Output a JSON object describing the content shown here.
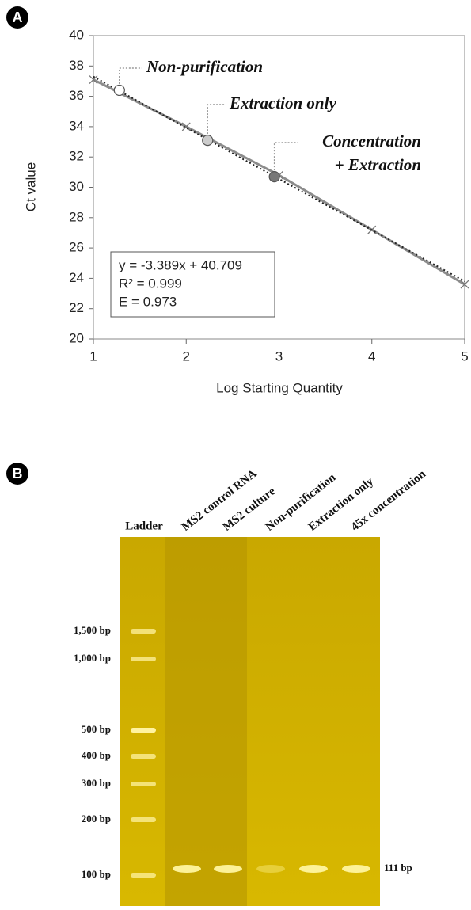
{
  "panel_labels": [
    "A",
    "B"
  ],
  "chart_data": {
    "type": "scatter",
    "xlabel": "Log Starting Quantity",
    "ylabel": "Ct value",
    "xlim": [
      1,
      5
    ],
    "ylim": [
      20,
      40
    ],
    "xticks": [
      1,
      2,
      3,
      4,
      5
    ],
    "yticks": [
      20,
      22,
      24,
      26,
      28,
      30,
      32,
      34,
      36,
      38,
      40
    ],
    "series": [
      {
        "color": "#8c8c8c",
        "marker": "x",
        "x": [
          1,
          2,
          3,
          4,
          5
        ],
        "values": [
          37.1,
          34.0,
          30.8,
          27.2,
          23.6
        ]
      },
      {
        "color": "#222222",
        "style": "dotted",
        "x": [
          1,
          5
        ],
        "values": [
          37.3,
          23.8
        ]
      }
    ],
    "samples": {
      "x": [
        1.28,
        2.23,
        2.95
      ],
      "values": [
        36.4,
        33.1,
        30.7
      ],
      "colors": [
        "#ffffff",
        "#cccccc",
        "#777777"
      ],
      "labels": [
        [
          "Non-purification"
        ],
        [
          "Extraction only"
        ],
        [
          "Concentration",
          "+ Extraction"
        ]
      ]
    },
    "equation": [
      "y = -3.389x + 40.709",
      "R² = 0.999",
      "E = 0.973"
    ]
  },
  "gel": {
    "ladder": "Ladder",
    "lanes": [
      "MS2 control RNA",
      "MS2 culture",
      "Non-purification",
      "Extraction only",
      "45x concentration"
    ],
    "markers": [
      "1,500 bp",
      "1,000 bp",
      "500 bp",
      "400 bp",
      "300 bp",
      "200 bp",
      "100 bp"
    ],
    "band": "111 bp"
  }
}
